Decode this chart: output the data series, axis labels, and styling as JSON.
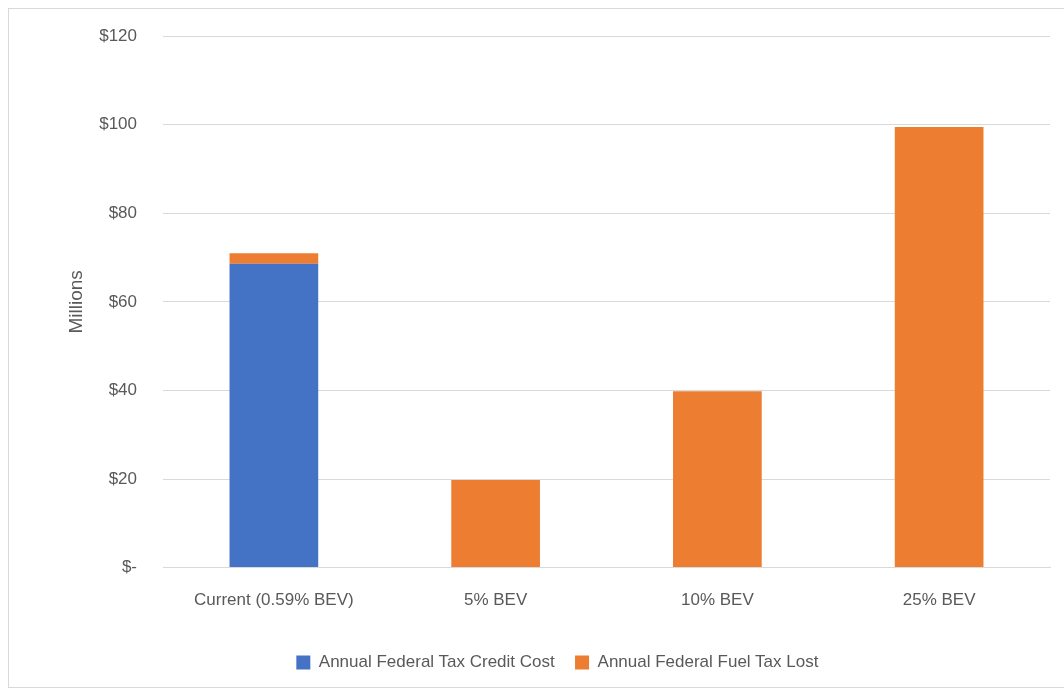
{
  "chart_data": {
    "type": "bar",
    "ylabel": "Millions",
    "categories": [
      "Current (0.59% BEV)",
      "5% BEV",
      "10% BEV",
      "25% BEV"
    ],
    "series": [
      {
        "name": "Annual Federal Tax Credit Cost",
        "color": "#4472c4",
        "values": [
          68.6,
          null,
          null,
          null
        ]
      },
      {
        "name": "Annual Federal Fuel Tax Lost",
        "color": "#ed7d31",
        "values": [
          2.4,
          19.8,
          39.8,
          99.5
        ]
      }
    ],
    "stacked": true,
    "ylim": [
      0,
      120
    ],
    "yticks": [
      {
        "value": 0,
        "label": "$-"
      },
      {
        "value": 20,
        "label": "$20"
      },
      {
        "value": 40,
        "label": "$40"
      },
      {
        "value": 60,
        "label": "$60"
      },
      {
        "value": 80,
        "label": "$80"
      },
      {
        "value": 100,
        "label": "$100"
      },
      {
        "value": 120,
        "label": "$120"
      }
    ],
    "grid": "y",
    "legend": "bottom"
  }
}
